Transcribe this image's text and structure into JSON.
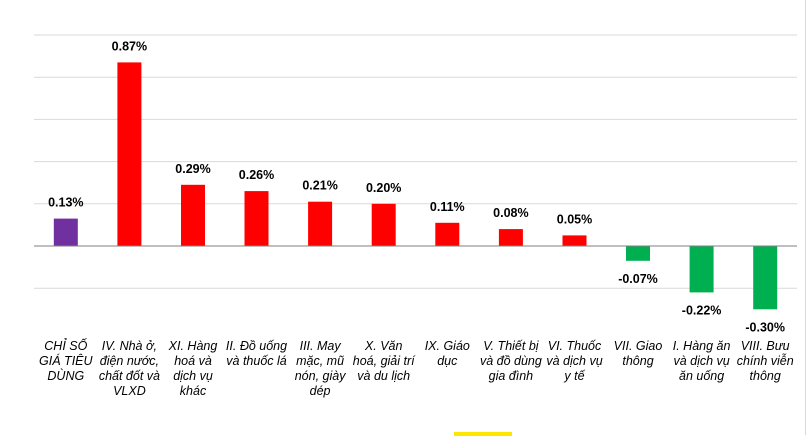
{
  "chart_data": {
    "type": "bar",
    "title": "",
    "xlabel": "",
    "ylabel": "",
    "ylim": [
      -0.4,
      1.0
    ],
    "grid": true,
    "legend": "none",
    "categories": [
      "CHỈ SỐ GIÁ TIÊU DÙNG",
      "IV. Nhà ở, điện nước, chất đốt và VLXD",
      "XI. Hàng hoá và dịch vụ khác",
      "II. Đồ uống và thuốc lá",
      "III. May mặc, mũ nón, giày dép",
      "X. Văn hoá, giải trí và du lịch",
      "IX. Giáo dục",
      "V. Thiết bị và đồ dùng gia đình",
      "VI. Thuốc và dịch vụ y tế",
      "VII. Giao thông",
      "I. Hàng ăn và dịch vụ ăn uống",
      "VIII. Bưu chính viễn thông"
    ],
    "values": [
      0.13,
      0.87,
      0.29,
      0.26,
      0.21,
      0.2,
      0.11,
      0.08,
      0.05,
      -0.07,
      -0.22,
      -0.3
    ],
    "labels": [
      "0.13%",
      "0.87%",
      "0.29%",
      "0.26%",
      "0.21%",
      "0.20%",
      "0.11%",
      "0.08%",
      "0.05%",
      "-0.07%",
      "-0.22%",
      "-0.30%"
    ],
    "colors": [
      "#7030a0",
      "#ff0000",
      "#ff0000",
      "#ff0000",
      "#ff0000",
      "#ff0000",
      "#ff0000",
      "#ff0000",
      "#ff0000",
      "#00b050",
      "#00b050",
      "#00b050"
    ],
    "gridline_color": "#d9d9d9",
    "axis_color": "#7f7f7f",
    "accent_color": "#ffe600"
  }
}
